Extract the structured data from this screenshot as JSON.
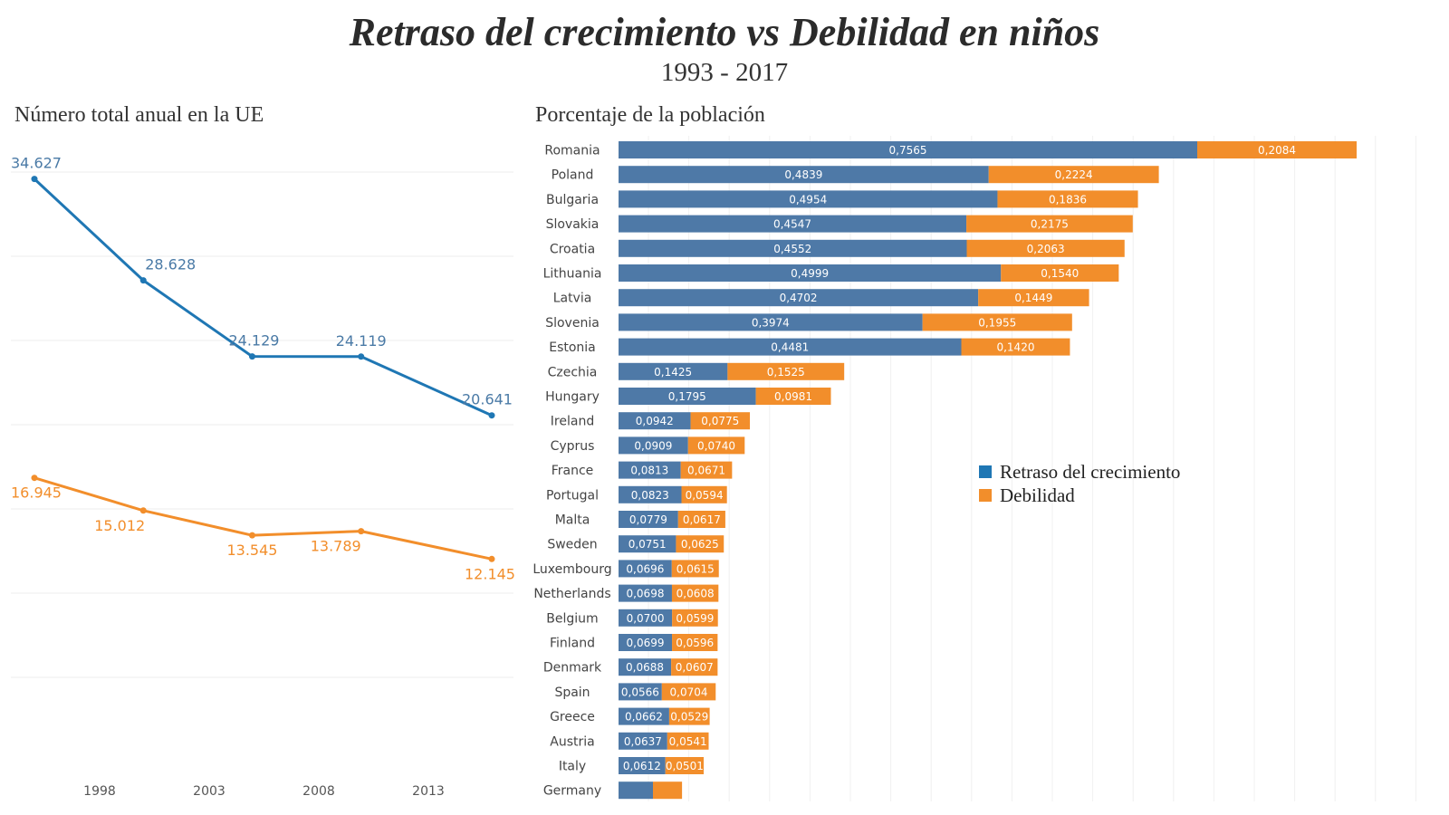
{
  "title": "Retraso del crecimiento vs Debilidad en niños",
  "subtitle": "1993 - 2017",
  "colors": {
    "stunting": "#4e79a7",
    "stunting_line": "#1f77b4",
    "wasting": "#f28e2b"
  },
  "chart_data": [
    {
      "type": "line",
      "title": "Número total anual en la UE",
      "x_tick_labels": [
        "1998",
        "2003",
        "2008",
        "2013"
      ],
      "grid": true,
      "series": [
        {
          "key": "stunting",
          "x": [
            1995,
            2000,
            2005,
            2010,
            2016
          ],
          "values": [
            34627,
            28628,
            24129,
            24119,
            20641
          ],
          "labels": [
            "34.627",
            "28.628",
            "24.129",
            "24.119",
            "20.641"
          ]
        },
        {
          "key": "wasting",
          "x": [
            1995,
            2000,
            2005,
            2010,
            2016
          ],
          "values": [
            16945,
            15012,
            13545,
            13789,
            12145
          ],
          "labels": [
            "16.945",
            "15.012",
            "13.545",
            "13.789",
            "12.145"
          ]
        }
      ]
    },
    {
      "type": "bar",
      "orientation": "horizontal",
      "stacked": true,
      "title": "Porcentaje de la población",
      "legend_position": "right",
      "categories": [
        "Romania",
        "Poland",
        "Bulgaria",
        "Slovakia",
        "Croatia",
        "Lithuania",
        "Latvia",
        "Slovenia",
        "Estonia",
        "Czechia",
        "Hungary",
        "Ireland",
        "Cyprus",
        "France",
        "Portugal",
        "Malta",
        "Sweden",
        "Luxembourg",
        "Netherlands",
        "Belgium",
        "Finland",
        "Denmark",
        "Spain",
        "Greece",
        "Austria",
        "Italy",
        "Germany"
      ],
      "series": [
        {
          "key": "stunting",
          "name": "Retraso del crecimiento",
          "values": [
            0.7565,
            0.4839,
            0.4954,
            0.4547,
            0.4552,
            0.4999,
            0.4702,
            0.3974,
            0.4481,
            0.1425,
            0.1795,
            0.0942,
            0.0909,
            0.0813,
            0.0823,
            0.0779,
            0.0751,
            0.0696,
            0.0698,
            0.07,
            0.0699,
            0.0688,
            0.0566,
            0.0662,
            0.0637,
            0.0612,
            0.045
          ],
          "labels": [
            "0,7565",
            "0,4839",
            "0,4954",
            "0,4547",
            "0,4552",
            "0,4999",
            "0,4702",
            "0,3974",
            "0,4481",
            "0,1425",
            "0,1795",
            "0,0942",
            "0,0909",
            "0,0813",
            "0,0823",
            "0,0779",
            "0,0751",
            "0,0696",
            "0,0698",
            "0,0700",
            "0,0699",
            "0,0688",
            "0,0566",
            "0,0662",
            "0,0637",
            "0,0612",
            ""
          ]
        },
        {
          "key": "wasting",
          "name": "Debilidad",
          "values": [
            0.2084,
            0.2224,
            0.1836,
            0.2175,
            0.2063,
            0.154,
            0.1449,
            0.1955,
            0.142,
            0.1525,
            0.0981,
            0.0775,
            0.074,
            0.0671,
            0.0594,
            0.0617,
            0.0625,
            0.0615,
            0.0608,
            0.0599,
            0.0596,
            0.0607,
            0.0704,
            0.0529,
            0.0541,
            0.0501,
            0.038
          ],
          "labels": [
            "0,2084",
            "0,2224",
            "0,1836",
            "0,2175",
            "0,2063",
            "0,1540",
            "0,1449",
            "0,1955",
            "0,1420",
            "0,1525",
            "0,0981",
            "0,0775",
            "0,0740",
            "0,0671",
            "0,0594",
            "0,0617",
            "0,0625",
            "0,0615",
            "0,0608",
            "0,0599",
            "0,0596",
            "0,0607",
            "0,0704",
            "0,0529",
            "0,0541",
            "0,0501",
            ""
          ]
        }
      ]
    }
  ]
}
